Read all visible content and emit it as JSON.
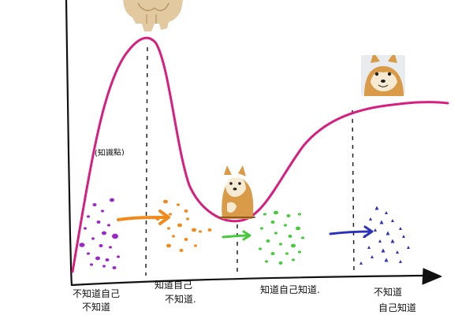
{
  "colors": {
    "curve": "#d61f7e",
    "axis": "#111111",
    "guide": "#222222",
    "purple": "#9b27c9",
    "orange": "#f08a1c",
    "green": "#46c93a",
    "blue": "#2c33b8",
    "muscle_dog": "#e2c99f",
    "shiba_body": "#d99b48",
    "shiba_face": "#f6ead2"
  },
  "icons": {
    "peak": "muscular-doge-icon",
    "valley": "sad-cheems-icon",
    "plateau": "doge-icon"
  },
  "annotations": {
    "peak_note": "(知識點)"
  },
  "stages": [
    {
      "line1": "不知道自己",
      "line2": "不知道"
    },
    {
      "line1": "知道自己",
      "line2": "不知道."
    },
    {
      "line1": "知道自己知道.",
      "line2": ""
    },
    {
      "line1": "不知道",
      "line2": "自己知道"
    }
  ]
}
